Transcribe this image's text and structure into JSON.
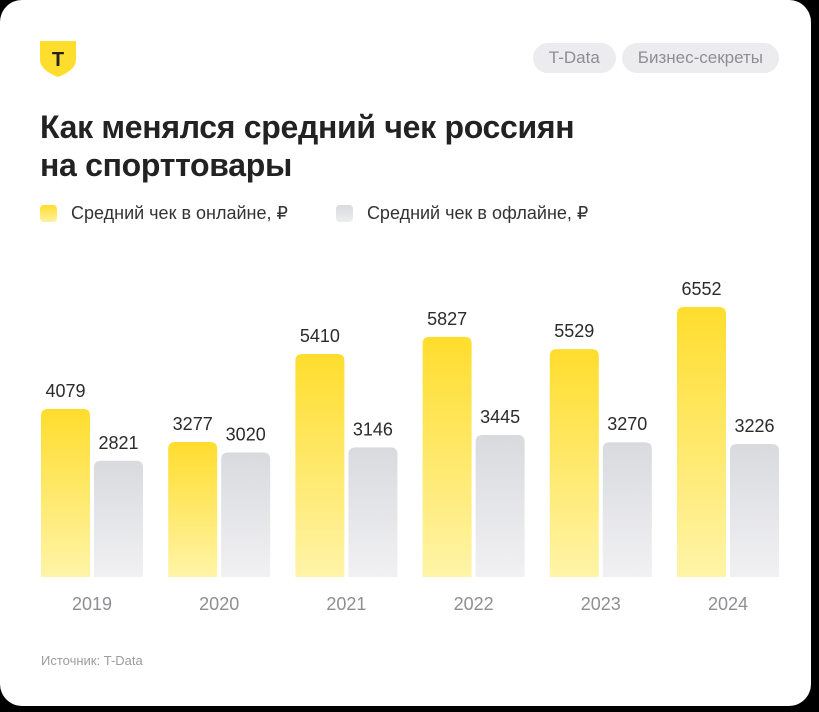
{
  "header": {
    "logo_letter": "Т",
    "tags": [
      "T-Data",
      "Бизнес-секреты"
    ]
  },
  "colors": {
    "online_top": "#ffdd2d",
    "online_bottom": "#fff4a8",
    "offline_top": "#d9dade",
    "offline_bottom": "#f1f1f3",
    "label": "#2b2b2b",
    "year": "#8e8e93"
  },
  "legend": {
    "online": "Средний чек в онлайне, ₽",
    "offline": "Средний чек в офлайне, ₽"
  },
  "source": "Источник: T-Data",
  "chart_data": {
    "type": "bar",
    "title": "Как менялся средний чек россиян\nна спорттовары",
    "categories": [
      "2019",
      "2020",
      "2021",
      "2022",
      "2023",
      "2024"
    ],
    "series": [
      {
        "name": "Средний чек в онлайне, ₽",
        "values": [
          4079,
          3277,
          5410,
          5827,
          5529,
          6552
        ]
      },
      {
        "name": "Средний чек в офлайне, ₽",
        "values": [
          2821,
          3020,
          3146,
          3445,
          3270,
          3226
        ]
      }
    ],
    "xlabel": "",
    "ylabel": "",
    "grid": false,
    "legend_position": "top-left"
  }
}
